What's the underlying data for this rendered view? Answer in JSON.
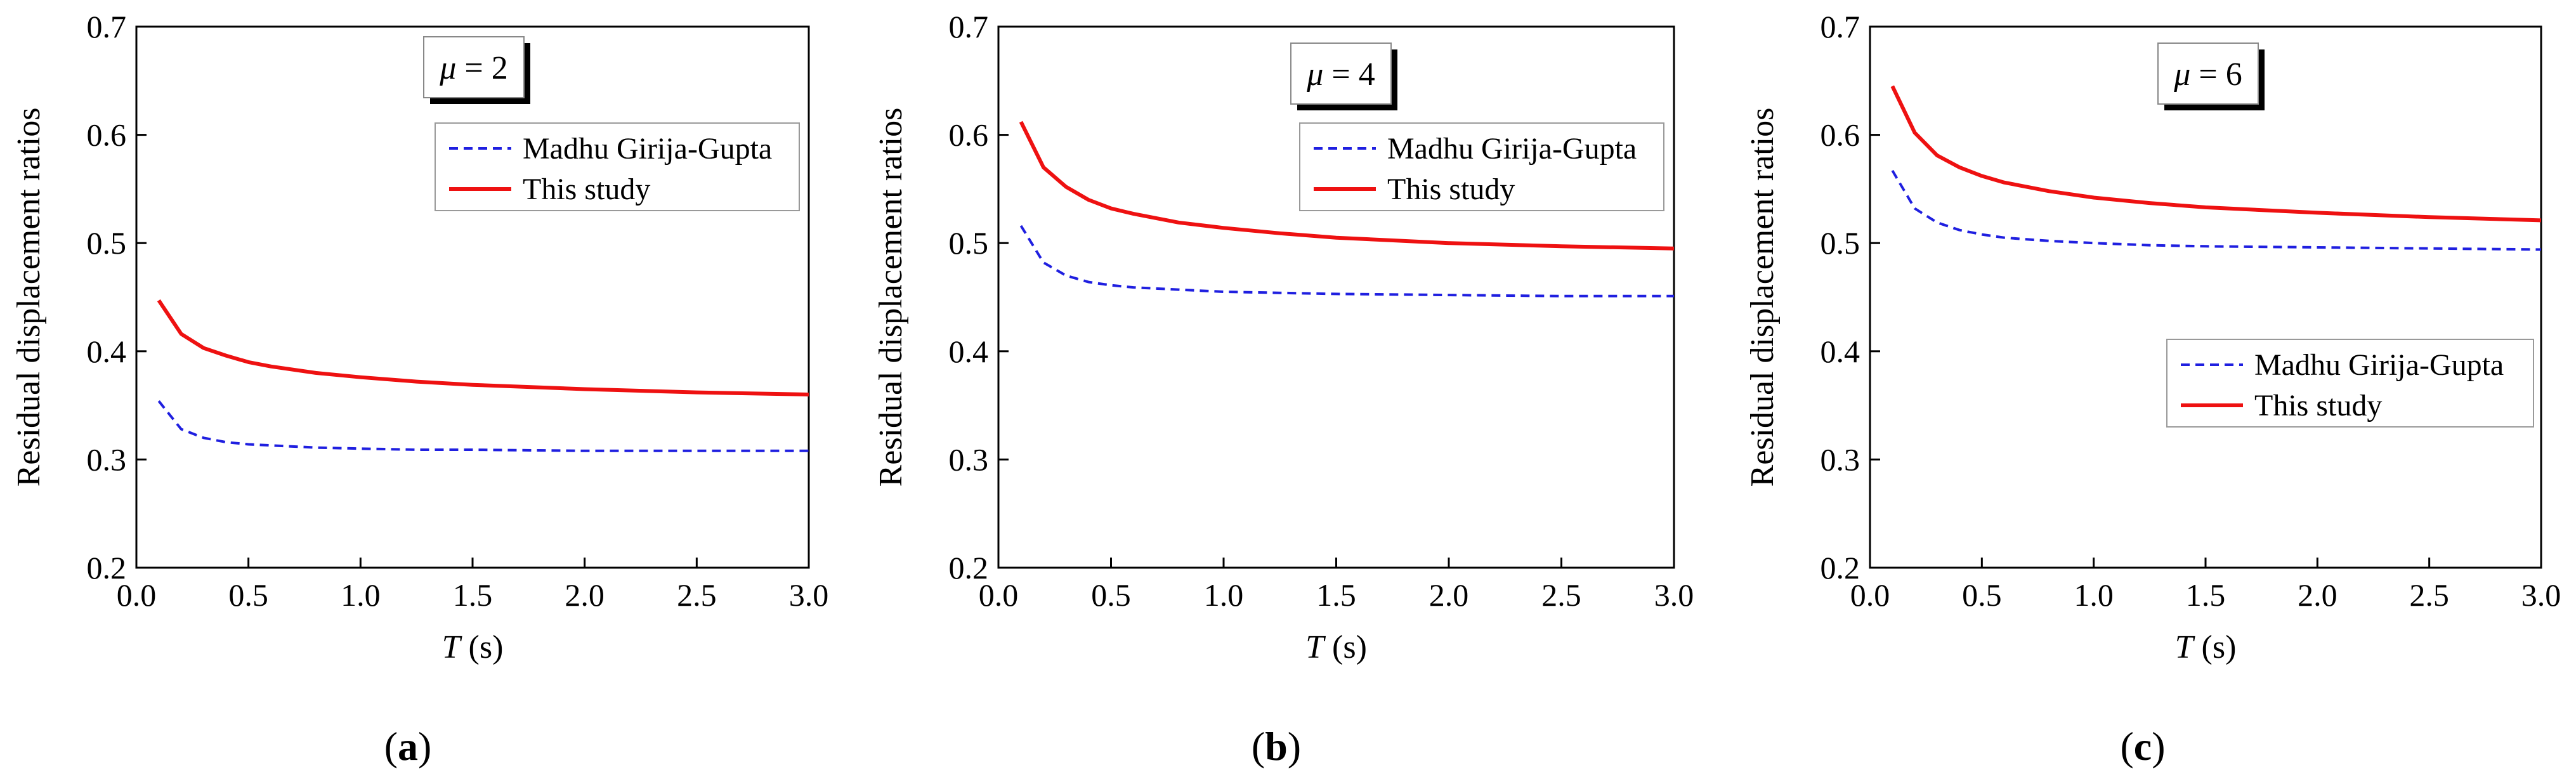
{
  "chart_data": [
    {
      "type": "line",
      "panel_label": "a",
      "mu_symbol": "μ",
      "mu_value": "2",
      "xlabel_var": "T",
      "xlabel_unit": "(s)",
      "ylabel": "Residual displacement ratios",
      "xlim": [
        0.0,
        3.0
      ],
      "ylim": [
        0.2,
        0.7
      ],
      "xticks": [
        "0.0",
        "0.5",
        "1.0",
        "1.5",
        "2.0",
        "2.5",
        "3.0"
      ],
      "yticks": [
        "0.2",
        "0.3",
        "0.4",
        "0.5",
        "0.6",
        "0.7"
      ],
      "legend_position": "top-right",
      "x": [
        0.1,
        0.2,
        0.3,
        0.4,
        0.5,
        0.6,
        0.8,
        1.0,
        1.25,
        1.5,
        2.0,
        2.5,
        3.0
      ],
      "series": [
        {
          "name": "Madhu Girija-Gupta",
          "style": "dashed",
          "color": "#1f1fe0",
          "values": [
            0.354,
            0.328,
            0.32,
            0.316,
            0.314,
            0.313,
            0.311,
            0.31,
            0.309,
            0.309,
            0.308,
            0.308,
            0.308
          ]
        },
        {
          "name": "This study",
          "style": "solid",
          "color": "#ee1111",
          "values": [
            0.447,
            0.416,
            0.403,
            0.396,
            0.39,
            0.386,
            0.38,
            0.376,
            0.372,
            0.369,
            0.365,
            0.362,
            0.36
          ]
        }
      ]
    },
    {
      "type": "line",
      "panel_label": "b",
      "mu_symbol": "μ",
      "mu_value": "4",
      "xlabel_var": "T",
      "xlabel_unit": "(s)",
      "ylabel": "Residual displacement ratios",
      "xlim": [
        0.0,
        3.0
      ],
      "ylim": [
        0.2,
        0.7
      ],
      "xticks": [
        "0.0",
        "0.5",
        "1.0",
        "1.5",
        "2.0",
        "2.5",
        "3.0"
      ],
      "yticks": [
        "0.2",
        "0.3",
        "0.4",
        "0.5",
        "0.6",
        "0.7"
      ],
      "legend_position": "top-right",
      "x": [
        0.1,
        0.2,
        0.3,
        0.4,
        0.5,
        0.6,
        0.8,
        1.0,
        1.25,
        1.5,
        2.0,
        2.5,
        3.0
      ],
      "series": [
        {
          "name": "Madhu Girija-Gupta",
          "style": "dashed",
          "color": "#1f1fe0",
          "values": [
            0.516,
            0.482,
            0.47,
            0.464,
            0.461,
            0.459,
            0.457,
            0.455,
            0.454,
            0.453,
            0.452,
            0.451,
            0.451
          ]
        },
        {
          "name": "This study",
          "style": "solid",
          "color": "#ee1111",
          "values": [
            0.612,
            0.57,
            0.552,
            0.54,
            0.532,
            0.527,
            0.519,
            0.514,
            0.509,
            0.505,
            0.5,
            0.497,
            0.495
          ]
        }
      ]
    },
    {
      "type": "line",
      "panel_label": "c",
      "mu_symbol": "μ",
      "mu_value": "6",
      "xlabel_var": "T",
      "xlabel_unit": "(s)",
      "ylabel": "Residual displacement ratios",
      "xlim": [
        0.0,
        3.0
      ],
      "ylim": [
        0.2,
        0.7
      ],
      "xticks": [
        "0.0",
        "0.5",
        "1.0",
        "1.5",
        "2.0",
        "2.5",
        "3.0"
      ],
      "yticks": [
        "0.2",
        "0.3",
        "0.4",
        "0.5",
        "0.6",
        "0.7"
      ],
      "legend_position": "bottom-right",
      "x": [
        0.1,
        0.2,
        0.3,
        0.4,
        0.5,
        0.6,
        0.8,
        1.0,
        1.25,
        1.5,
        2.0,
        2.5,
        3.0
      ],
      "series": [
        {
          "name": "Madhu Girija-Gupta",
          "style": "dashed",
          "color": "#1f1fe0",
          "values": [
            0.567,
            0.532,
            0.519,
            0.512,
            0.508,
            0.505,
            0.502,
            0.5,
            0.498,
            0.497,
            0.496,
            0.495,
            0.494
          ]
        },
        {
          "name": "This study",
          "style": "solid",
          "color": "#ee1111",
          "values": [
            0.645,
            0.602,
            0.581,
            0.57,
            0.562,
            0.556,
            0.548,
            0.542,
            0.537,
            0.533,
            0.528,
            0.524,
            0.521
          ]
        }
      ]
    }
  ]
}
